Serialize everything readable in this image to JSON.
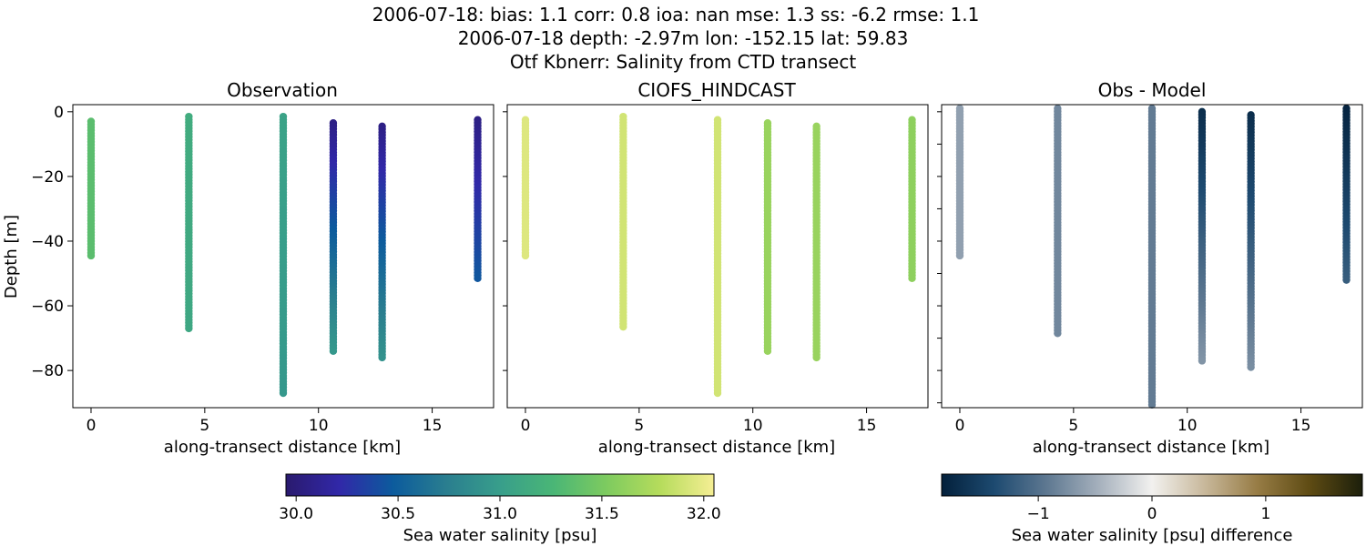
{
  "figure": {
    "title_lines": [
      "2006-07-18: bias: 1.1  corr: 0.8  ioa: nan  mse: 1.3  ss: -6.2  rmse: 1.1",
      "2006-07-18 depth: -2.97m lon: -152.15 lat: 59.83",
      "Otf Kbnerr: Salinity from CTD transect"
    ]
  },
  "chart_data": [
    {
      "type": "scatter",
      "title": "Observation",
      "xlabel": "along-transect distance [km]",
      "ylabel": "Depth [m]",
      "xlim": [
        -0.8,
        17.7
      ],
      "ylim": [
        -91.5,
        2.2
      ],
      "xticks": [
        0,
        5,
        10,
        15
      ],
      "yticks": [
        0,
        -20,
        -40,
        -60,
        -80
      ],
      "colormap": "salinity",
      "casts": [
        {
          "x": 0.0,
          "top": -3.0,
          "bottom": -44.5,
          "value_top": 31.35,
          "value_bottom": 31.35
        },
        {
          "x": 4.3,
          "top": -1.5,
          "bottom": -67.0,
          "value_top": 31.15,
          "value_bottom": 31.1
        },
        {
          "x": 8.45,
          "top": -1.5,
          "bottom": -87.0,
          "value_top": 31.05,
          "value_bottom": 30.95
        },
        {
          "x": 10.65,
          "top": -3.5,
          "bottom": -74.0,
          "value_top": 30.05,
          "value_bottom": 30.95
        },
        {
          "x": 12.8,
          "top": -4.5,
          "bottom": -76.0,
          "value_top": 30.05,
          "value_bottom": 30.9
        },
        {
          "x": 17.0,
          "top": -2.5,
          "bottom": -51.5,
          "value_top": 30.05,
          "value_bottom": 30.45
        }
      ]
    },
    {
      "type": "scatter",
      "title": "CIOFS_HINDCAST",
      "xlabel": "along-transect distance [km]",
      "ylabel": "",
      "xlim": [
        -0.8,
        17.7
      ],
      "ylim": [
        -91.5,
        2.2
      ],
      "xticks": [
        0,
        5,
        10,
        15
      ],
      "yticks": [],
      "colormap": "salinity",
      "casts": [
        {
          "x": 0.0,
          "top": -2.5,
          "bottom": -44.5,
          "value_top": 31.95,
          "value_bottom": 31.95
        },
        {
          "x": 4.3,
          "top": -1.5,
          "bottom": -66.5,
          "value_top": 31.9,
          "value_bottom": 31.9
        },
        {
          "x": 8.45,
          "top": -2.5,
          "bottom": -87.0,
          "value_top": 31.9,
          "value_bottom": 31.9
        },
        {
          "x": 10.65,
          "top": -3.5,
          "bottom": -74.0,
          "value_top": 31.65,
          "value_bottom": 31.65
        },
        {
          "x": 12.8,
          "top": -4.5,
          "bottom": -76.0,
          "value_top": 31.65,
          "value_bottom": 31.65
        },
        {
          "x": 17.0,
          "top": -2.5,
          "bottom": -51.5,
          "value_top": 31.6,
          "value_bottom": 31.6
        }
      ]
    },
    {
      "type": "scatter",
      "title": "Obs - Model",
      "xlabel": "along-transect distance [km]",
      "ylabel": "",
      "xlim": [
        -0.8,
        17.7
      ],
      "ylim": [
        -91.5,
        2.2
      ],
      "xticks": [
        0,
        5,
        10,
        15
      ],
      "yticks": [],
      "colormap": "difference",
      "casts": [
        {
          "x": 0.0,
          "top": 1.0,
          "bottom": -44.5,
          "value_top": -0.6,
          "value_bottom": -0.6
        },
        {
          "x": 4.3,
          "top": 1.0,
          "bottom": -68.5,
          "value_top": -0.8,
          "value_bottom": -0.8
        },
        {
          "x": 8.45,
          "top": 1.0,
          "bottom": -91.5,
          "value_top": -0.9,
          "value_bottom": -0.9
        },
        {
          "x": 10.65,
          "top": 0.0,
          "bottom": -77.0,
          "value_top": -1.7,
          "value_bottom": -0.7
        },
        {
          "x": 12.8,
          "top": -1.0,
          "bottom": -79.0,
          "value_top": -1.7,
          "value_bottom": -0.75
        },
        {
          "x": 17.0,
          "top": 1.0,
          "bottom": -52.0,
          "value_top": -1.8,
          "value_bottom": -1.2
        }
      ]
    }
  ],
  "colorbars": [
    {
      "label": "Sea water salinity [psu]",
      "range": [
        29.95,
        32.05
      ],
      "ticks": [
        "30.0",
        "30.5",
        "31.0",
        "31.5",
        "32.0"
      ],
      "tick_values": [
        30.0,
        30.5,
        31.0,
        31.5,
        32.0
      ],
      "colors": [
        "#2a1a6e",
        "#3128a8",
        "#0c5b9d",
        "#2a7e8f",
        "#389e8b",
        "#4ab676",
        "#7ecb5f",
        "#b6dc5c",
        "#f5ee94"
      ]
    },
    {
      "label": "Sea water salinity [psu] difference",
      "range": [
        -1.85,
        1.85
      ],
      "ticks": [
        "−1",
        "0",
        "1"
      ],
      "tick_values": [
        -1,
        0,
        1
      ],
      "colors": [
        "#03203b",
        "#1d4a70",
        "#5e7891",
        "#a6b1bd",
        "#f2f1ef",
        "#c8b89b",
        "#977c45",
        "#5e4b13",
        "#1c1f0b"
      ]
    }
  ]
}
